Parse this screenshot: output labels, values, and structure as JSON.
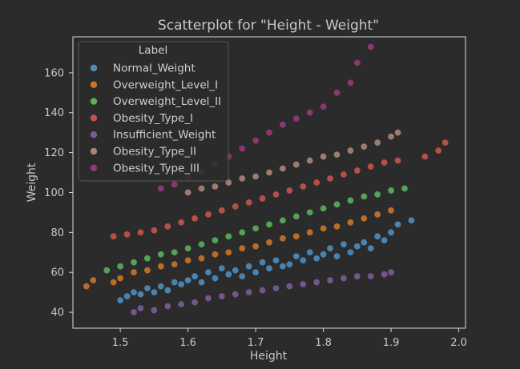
{
  "chart_data": {
    "type": "scatter",
    "title": "Scatterplot for \"Height - Weight\"",
    "xlabel": "Height",
    "ylabel": "Weight",
    "xlim": [
      1.43,
      2.01
    ],
    "ylim": [
      32,
      178
    ],
    "xticks": [
      "1.5",
      "1.6",
      "1.7",
      "1.8",
      "1.9",
      "2.0"
    ],
    "yticks": [
      "40",
      "60",
      "80",
      "100",
      "120",
      "140",
      "160"
    ],
    "legend": {
      "title": "Label",
      "placement": "upper-left"
    },
    "grid": false,
    "series": [
      {
        "name": "Normal_Weight",
        "color": "#4c8dbf",
        "x": [
          1.5,
          1.51,
          1.52,
          1.53,
          1.54,
          1.55,
          1.56,
          1.57,
          1.58,
          1.59,
          1.6,
          1.61,
          1.62,
          1.63,
          1.64,
          1.65,
          1.66,
          1.67,
          1.68,
          1.69,
          1.7,
          1.71,
          1.72,
          1.73,
          1.74,
          1.75,
          1.76,
          1.77,
          1.78,
          1.79,
          1.8,
          1.81,
          1.82,
          1.83,
          1.84,
          1.85,
          1.86,
          1.87,
          1.88,
          1.89,
          1.9,
          1.91,
          1.93
        ],
        "y": [
          46,
          48,
          50,
          49,
          52,
          50,
          53,
          51,
          55,
          54,
          56,
          58,
          55,
          60,
          57,
          62,
          59,
          61,
          58,
          63,
          60,
          65,
          62,
          66,
          63,
          64,
          68,
          66,
          70,
          67,
          69,
          72,
          68,
          74,
          70,
          73,
          75,
          72,
          78,
          76,
          80,
          84,
          86
        ]
      },
      {
        "name": "Overweight_Level_I",
        "color": "#c8742b",
        "x": [
          1.45,
          1.46,
          1.49,
          1.5,
          1.52,
          1.54,
          1.56,
          1.58,
          1.6,
          1.62,
          1.64,
          1.66,
          1.68,
          1.7,
          1.72,
          1.74,
          1.76,
          1.78,
          1.8,
          1.82,
          1.84,
          1.86,
          1.88,
          1.9
        ],
        "y": [
          53,
          56,
          55,
          57,
          60,
          61,
          63,
          64,
          66,
          67,
          69,
          70,
          72,
          73,
          75,
          77,
          78,
          80,
          82,
          83,
          85,
          87,
          89,
          91
        ]
      },
      {
        "name": "Overweight_Level_II",
        "color": "#5aaf5a",
        "x": [
          1.48,
          1.5,
          1.52,
          1.54,
          1.56,
          1.58,
          1.6,
          1.62,
          1.64,
          1.66,
          1.68,
          1.7,
          1.72,
          1.74,
          1.76,
          1.78,
          1.8,
          1.82,
          1.84,
          1.86,
          1.88,
          1.9,
          1.92
        ],
        "y": [
          61,
          63,
          65,
          67,
          69,
          70,
          72,
          74,
          76,
          78,
          80,
          82,
          84,
          86,
          88,
          90,
          92,
          94,
          96,
          98,
          99,
          101,
          102
        ]
      },
      {
        "name": "Obesity_Type_I",
        "color": "#c2544c",
        "x": [
          1.49,
          1.51,
          1.53,
          1.55,
          1.57,
          1.59,
          1.61,
          1.63,
          1.65,
          1.67,
          1.69,
          1.71,
          1.73,
          1.75,
          1.77,
          1.79,
          1.81,
          1.83,
          1.85,
          1.87,
          1.89,
          1.91,
          1.95,
          1.97,
          1.98
        ],
        "y": [
          78,
          79,
          80,
          81,
          83,
          85,
          87,
          89,
          91,
          93,
          95,
          97,
          99,
          101,
          103,
          105,
          107,
          109,
          111,
          113,
          115,
          116,
          118,
          121,
          125
        ]
      },
      {
        "name": "Insufficient_Weight",
        "color": "#7c5a99",
        "x": [
          1.52,
          1.53,
          1.55,
          1.57,
          1.59,
          1.61,
          1.63,
          1.65,
          1.67,
          1.69,
          1.71,
          1.73,
          1.75,
          1.77,
          1.79,
          1.81,
          1.83,
          1.85,
          1.87,
          1.89,
          1.9
        ],
        "y": [
          40,
          42,
          41,
          43,
          44,
          45,
          47,
          48,
          49,
          50,
          51,
          52,
          53,
          54,
          55,
          56,
          57,
          58,
          58,
          59,
          60
        ]
      },
      {
        "name": "Obesity_Type_II",
        "color": "#a88578",
        "x": [
          1.6,
          1.62,
          1.64,
          1.66,
          1.68,
          1.7,
          1.72,
          1.74,
          1.76,
          1.78,
          1.8,
          1.82,
          1.84,
          1.86,
          1.88,
          1.9,
          1.91
        ],
        "y": [
          100,
          102,
          103,
          105,
          107,
          108,
          110,
          112,
          114,
          116,
          118,
          119,
          121,
          123,
          125,
          128,
          130
        ]
      },
      {
        "name": "Obesity_Type_III",
        "color": "#953a79",
        "x": [
          1.56,
          1.58,
          1.6,
          1.62,
          1.64,
          1.66,
          1.68,
          1.7,
          1.72,
          1.74,
          1.76,
          1.78,
          1.8,
          1.82,
          1.84,
          1.85,
          1.87
        ],
        "y": [
          102,
          104,
          107,
          110,
          114,
          118,
          122,
          126,
          130,
          134,
          137,
          140,
          143,
          150,
          155,
          165,
          173
        ]
      }
    ]
  }
}
